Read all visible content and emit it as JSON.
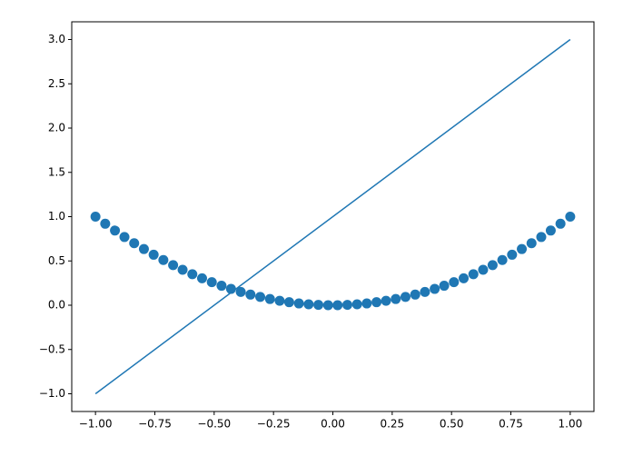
{
  "chart_data": {
    "type": "line",
    "series": [
      {
        "style": "line",
        "color": "#1f77b4",
        "x": [
          -1,
          1
        ],
        "values": [
          -1,
          3
        ]
      },
      {
        "style": "markers",
        "color": "#1f77b4",
        "x": [
          -1.0,
          -0.959,
          -0.918,
          -0.878,
          -0.837,
          -0.796,
          -0.755,
          -0.714,
          -0.673,
          -0.633,
          -0.592,
          -0.551,
          -0.51,
          -0.469,
          -0.429,
          -0.388,
          -0.347,
          -0.306,
          -0.265,
          -0.224,
          -0.184,
          -0.143,
          -0.102,
          -0.061,
          -0.02,
          0.02,
          0.061,
          0.102,
          0.143,
          0.184,
          0.224,
          0.265,
          0.306,
          0.347,
          0.388,
          0.429,
          0.469,
          0.51,
          0.551,
          0.592,
          0.633,
          0.673,
          0.714,
          0.755,
          0.796,
          0.837,
          0.878,
          0.918,
          0.959,
          1.0
        ],
        "values": [
          1.0,
          0.92,
          0.843,
          0.77,
          0.7,
          0.634,
          0.57,
          0.51,
          0.453,
          0.4,
          0.35,
          0.304,
          0.26,
          0.22,
          0.184,
          0.15,
          0.12,
          0.094,
          0.07,
          0.05,
          0.034,
          0.02,
          0.01,
          0.004,
          0.0,
          0.0,
          0.004,
          0.01,
          0.02,
          0.034,
          0.05,
          0.07,
          0.094,
          0.12,
          0.15,
          0.184,
          0.22,
          0.26,
          0.304,
          0.35,
          0.4,
          0.453,
          0.51,
          0.57,
          0.634,
          0.7,
          0.77,
          0.843,
          0.92,
          1.0
        ]
      }
    ],
    "xlim": [
      -1.1,
      1.1
    ],
    "ylim": [
      -1.2,
      3.2
    ],
    "xticks": [
      {
        "value": -1,
        "label": "−1.00"
      },
      {
        "value": -0.75,
        "label": "−0.75"
      },
      {
        "value": -0.5,
        "label": "−0.50"
      },
      {
        "value": -0.25,
        "label": "−0.25"
      },
      {
        "value": 0,
        "label": "0.00"
      },
      {
        "value": 0.25,
        "label": "0.25"
      },
      {
        "value": 0.5,
        "label": "0.50"
      },
      {
        "value": 0.75,
        "label": "0.75"
      },
      {
        "value": 1,
        "label": "1.00"
      }
    ],
    "yticks": [
      {
        "value": -1,
        "label": "−1.0"
      },
      {
        "value": -0.5,
        "label": "−0.5"
      },
      {
        "value": 0,
        "label": "0.0"
      },
      {
        "value": 0.5,
        "label": "0.5"
      },
      {
        "value": 1,
        "label": "1.0"
      },
      {
        "value": 1.5,
        "label": "1.5"
      },
      {
        "value": 2,
        "label": "2.0"
      },
      {
        "value": 2.5,
        "label": "2.5"
      },
      {
        "value": 3,
        "label": "3.0"
      }
    ],
    "grid": false
  }
}
